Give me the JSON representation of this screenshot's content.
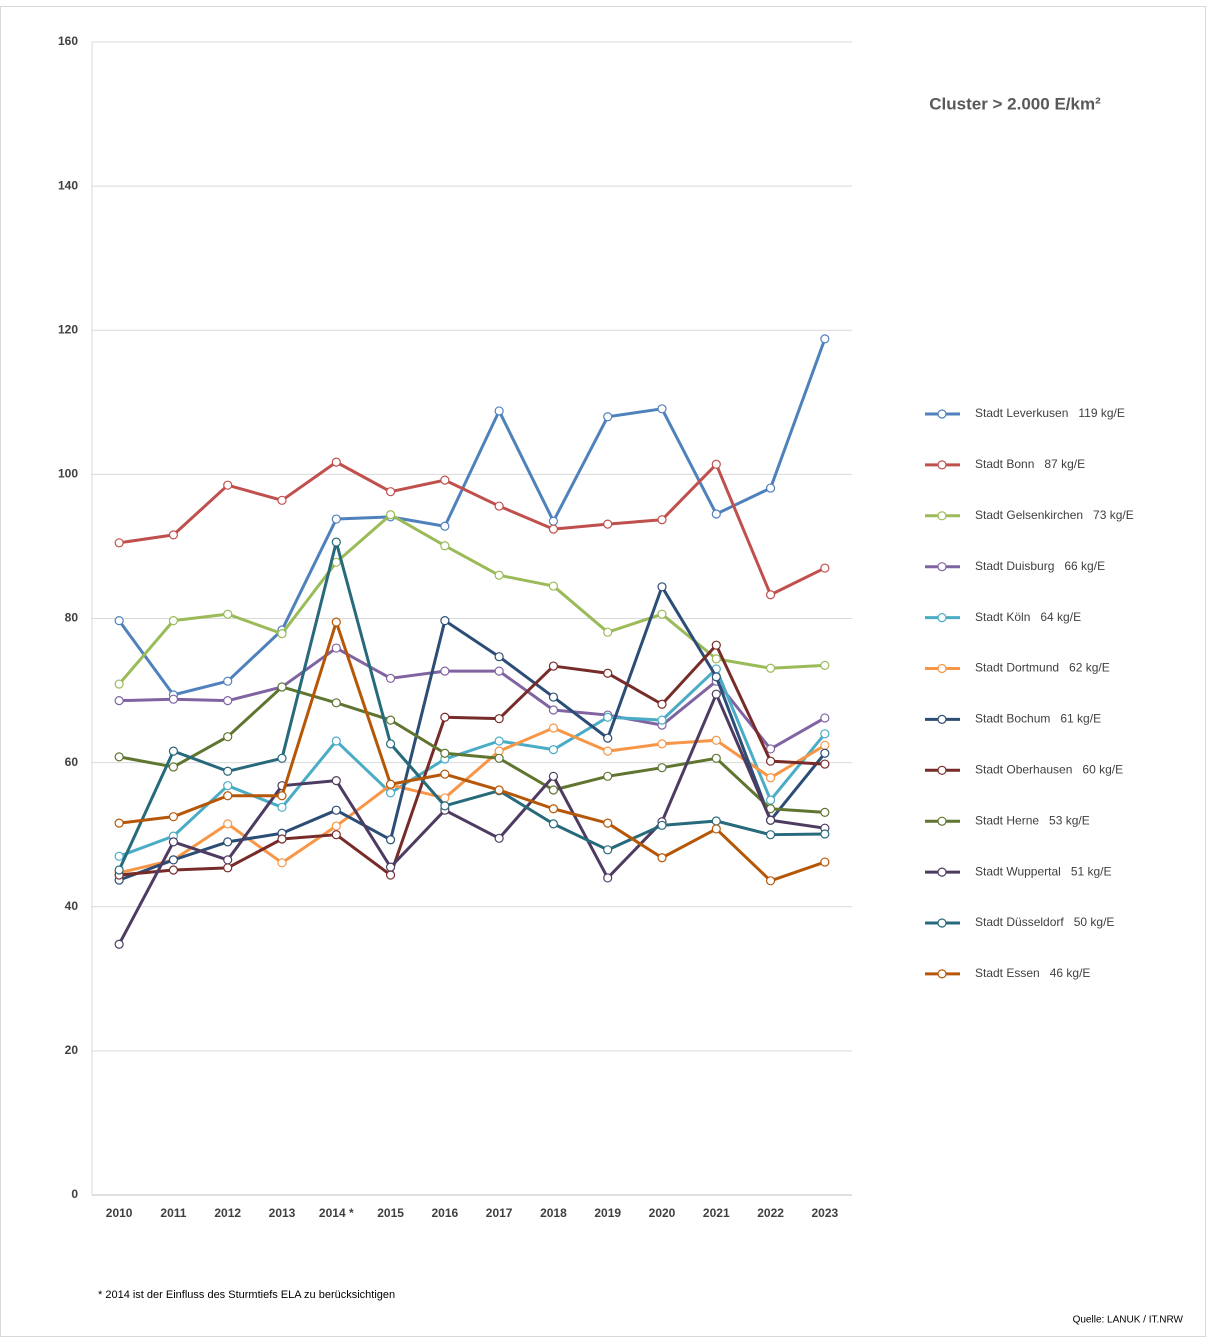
{
  "chart_data": {
    "type": "line",
    "title": "Cluster > 2.000 E/km²",
    "footnote": "* 2014 ist der Einfluss des Sturmtiefs ELA zu berücksichtigen",
    "source": "Quelle: LANUK / IT.NRW",
    "categories": [
      "2010",
      "2011",
      "2012",
      "2013",
      "2014 *",
      "2015",
      "2016",
      "2017",
      "2018",
      "2019",
      "2020",
      "2021",
      "2022",
      "2023"
    ],
    "ylim": [
      0,
      160
    ],
    "yticks": [
      0,
      20,
      40,
      60,
      80,
      100,
      120,
      140,
      160
    ],
    "grid": true,
    "legend": "right",
    "series": [
      {
        "name": "Stadt Leverkusen   119 kg/E",
        "color": "#4f81bd",
        "values": [
          79.7,
          69.4,
          71.3,
          78.4,
          93.8,
          94.1,
          92.8,
          108.8,
          93.5,
          108,
          109.1,
          94.5,
          98.1,
          118.8
        ]
      },
      {
        "name": "Stadt Bonn   87 kg/E",
        "color": "#c0504d",
        "values": [
          90.5,
          91.6,
          98.5,
          96.4,
          101.7,
          97.6,
          99.2,
          95.6,
          92.4,
          93.1,
          93.7,
          101.4,
          83.3,
          87.0
        ]
      },
      {
        "name": "Stadt Gelsenkirchen   73 kg/E",
        "color": "#9bbb59",
        "values": [
          70.9,
          79.7,
          80.6,
          77.9,
          87.8,
          94.4,
          90.1,
          86.0,
          84.5,
          78.1,
          80.6,
          74.4,
          73.1,
          73.5
        ]
      },
      {
        "name": "Stadt Duisburg   66 kg/E",
        "color": "#8064a2",
        "values": [
          68.6,
          68.8,
          68.6,
          70.5,
          75.9,
          71.7,
          72.7,
          72.7,
          67.3,
          66.6,
          65.2,
          71.3,
          61.9,
          66.2
        ]
      },
      {
        "name": "Stadt Köln   64 kg/E",
        "color": "#4bacc6",
        "values": [
          47.0,
          49.8,
          56.8,
          53.8,
          63.0,
          55.8,
          60.5,
          63.0,
          61.8,
          66.3,
          65.9,
          73.0,
          54.8,
          64.0
        ]
      },
      {
        "name": "Stadt Dortmund   62 kg/E",
        "color": "#f79646",
        "values": [
          44.7,
          46.5,
          51.5,
          46.1,
          51.2,
          56.9,
          55.1,
          61.6,
          64.8,
          61.6,
          62.6,
          63.1,
          57.9,
          62.4
        ]
      },
      {
        "name": "Stadt Bochum   61 kg/E",
        "color": "#2c4d75",
        "values": [
          43.7,
          46.5,
          49.0,
          50.2,
          53.4,
          49.3,
          79.7,
          74.7,
          69.1,
          63.4,
          84.4,
          71.9,
          52.0,
          61.3
        ]
      },
      {
        "name": "Stadt Oberhausen   60 kg/E",
        "color": "#772c2a",
        "values": [
          44.4,
          45.1,
          45.4,
          49.4,
          50.0,
          44.4,
          66.3,
          66.1,
          73.4,
          72.4,
          68.1,
          76.3,
          60.2,
          59.8
        ]
      },
      {
        "name": "Stadt Herne   53 kg/E",
        "color": "#5f7530",
        "values": [
          60.8,
          59.4,
          63.6,
          70.5,
          68.3,
          65.9,
          61.3,
          60.6,
          56.2,
          58.1,
          59.3,
          60.6,
          53.6,
          53.1
        ]
      },
      {
        "name": "Stadt Wuppertal   51 kg/E",
        "color": "#4d3b62",
        "values": [
          34.8,
          49.0,
          46.5,
          56.8,
          57.5,
          45.5,
          53.4,
          49.5,
          58.1,
          44.0,
          51.8,
          69.5,
          52.0,
          50.9
        ]
      },
      {
        "name": "Stadt Düsseldorf   50 kg/E",
        "color": "#276a7c",
        "values": [
          45.1,
          61.6,
          58.8,
          60.6,
          90.6,
          62.6,
          54.0,
          56.1,
          51.5,
          47.9,
          51.3,
          51.9,
          50.0,
          50.1
        ]
      },
      {
        "name": "Stadt Essen   46 kg/E",
        "color": "#b65708",
        "values": [
          51.6,
          52.5,
          55.4,
          55.4,
          79.5,
          57.0,
          58.4,
          56.2,
          53.6,
          51.6,
          46.8,
          50.8,
          43.6,
          46.2
        ]
      }
    ]
  }
}
